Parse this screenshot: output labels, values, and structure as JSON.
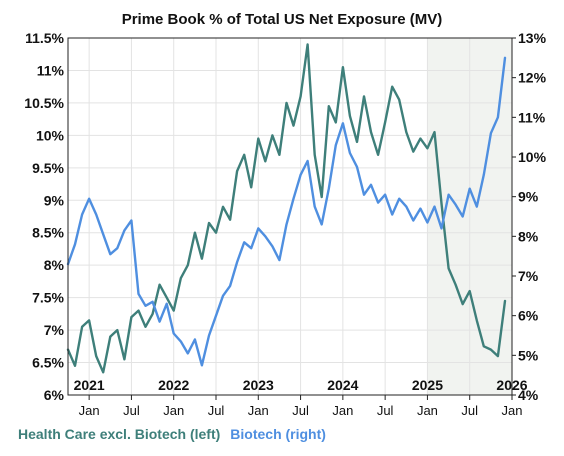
{
  "chart_data": {
    "type": "line",
    "title": "Prime Book % of Total US Net Exposure (MV)",
    "x_start": "2020-10",
    "x_end": "2026-01",
    "shaded_region": [
      "2025-01",
      "2026-01"
    ],
    "left_axis": {
      "min": 6,
      "max": 11.5,
      "ticks": [
        "6%",
        "6.5%",
        "7%",
        "7.5%",
        "8%",
        "8.5%",
        "9%",
        "9.5%",
        "10%",
        "10.5%",
        "11%",
        "11.5%"
      ],
      "tick_values": [
        6,
        6.5,
        7,
        7.5,
        8,
        8.5,
        9,
        9.5,
        10,
        10.5,
        11,
        11.5
      ]
    },
    "right_axis": {
      "min": 4,
      "max": 13,
      "ticks": [
        "4%",
        "5%",
        "6%",
        "7%",
        "8%",
        "9%",
        "10%",
        "11%",
        "12%",
        "13%"
      ],
      "tick_values": [
        4,
        5,
        6,
        7,
        8,
        9,
        10,
        11,
        12,
        13
      ]
    },
    "year_labels": [
      {
        "text": "2021",
        "date": "2021-01"
      },
      {
        "text": "2022",
        "date": "2022-01"
      },
      {
        "text": "2023",
        "date": "2023-01"
      },
      {
        "text": "2024",
        "date": "2024-01"
      },
      {
        "text": "2025",
        "date": "2025-01"
      },
      {
        "text": "2026",
        "date": "2026-01"
      }
    ],
    "month_labels": [
      {
        "text": "Jan",
        "date": "2021-01"
      },
      {
        "text": "Jul",
        "date": "2021-07"
      },
      {
        "text": "Jan",
        "date": "2022-01"
      },
      {
        "text": "Jul",
        "date": "2022-07"
      },
      {
        "text": "Jan",
        "date": "2023-01"
      },
      {
        "text": "Jul",
        "date": "2023-07"
      },
      {
        "text": "Jan",
        "date": "2024-01"
      },
      {
        "text": "Jul",
        "date": "2024-07"
      },
      {
        "text": "Jan",
        "date": "2025-01"
      },
      {
        "text": "Jul",
        "date": "2025-07"
      },
      {
        "text": "Jan",
        "date": "2026-01"
      }
    ],
    "series": [
      {
        "name": "Health Care excl. Biotech (left)",
        "axis": "left",
        "color": "#3e7f7a",
        "points": [
          [
            "2020-10",
            6.7
          ],
          [
            "2020-11",
            6.45
          ],
          [
            "2020-12",
            7.05
          ],
          [
            "2021-01",
            7.15
          ],
          [
            "2021-02",
            6.6
          ],
          [
            "2021-03",
            6.35
          ],
          [
            "2021-04",
            6.9
          ],
          [
            "2021-05",
            7.0
          ],
          [
            "2021-06",
            6.55
          ],
          [
            "2021-07",
            7.2
          ],
          [
            "2021-08",
            7.3
          ],
          [
            "2021-09",
            7.05
          ],
          [
            "2021-10",
            7.25
          ],
          [
            "2021-11",
            7.7
          ],
          [
            "2021-12",
            7.5
          ],
          [
            "2022-01",
            7.3
          ],
          [
            "2022-02",
            7.8
          ],
          [
            "2022-03",
            8.0
          ],
          [
            "2022-04",
            8.5
          ],
          [
            "2022-05",
            8.1
          ],
          [
            "2022-06",
            8.65
          ],
          [
            "2022-07",
            8.5
          ],
          [
            "2022-08",
            8.9
          ],
          [
            "2022-09",
            8.7
          ],
          [
            "2022-10",
            9.45
          ],
          [
            "2022-11",
            9.7
          ],
          [
            "2022-12",
            9.2
          ],
          [
            "2023-01",
            9.95
          ],
          [
            "2023-02",
            9.6
          ],
          [
            "2023-03",
            10.0
          ],
          [
            "2023-04",
            9.7
          ],
          [
            "2023-05",
            10.5
          ],
          [
            "2023-06",
            10.15
          ],
          [
            "2023-07",
            10.6
          ],
          [
            "2023-08",
            11.4
          ],
          [
            "2023-09",
            9.7
          ],
          [
            "2023-10",
            9.05
          ],
          [
            "2023-11",
            10.45
          ],
          [
            "2023-12",
            10.2
          ],
          [
            "2024-01",
            11.05
          ],
          [
            "2024-02",
            10.3
          ],
          [
            "2024-03",
            9.9
          ],
          [
            "2024-04",
            10.6
          ],
          [
            "2024-05",
            10.05
          ],
          [
            "2024-06",
            9.7
          ],
          [
            "2024-07",
            10.2
          ],
          [
            "2024-08",
            10.75
          ],
          [
            "2024-09",
            10.55
          ],
          [
            "2024-10",
            10.05
          ],
          [
            "2024-11",
            9.75
          ],
          [
            "2024-12",
            9.95
          ],
          [
            "2025-01",
            9.8
          ],
          [
            "2025-02",
            10.05
          ],
          [
            "2025-03",
            8.95
          ],
          [
            "2025-04",
            7.95
          ],
          [
            "2025-05",
            7.7
          ],
          [
            "2025-06",
            7.4
          ],
          [
            "2025-07",
            7.6
          ],
          [
            "2025-08",
            7.15
          ],
          [
            "2025-09",
            6.75
          ],
          [
            "2025-10",
            6.7
          ],
          [
            "2025-11",
            6.6
          ],
          [
            "2025-12",
            7.45
          ]
        ]
      },
      {
        "name": "Biotech (right)",
        "axis": "right",
        "color": "#4f8fe0",
        "points": [
          [
            "2020-10",
            7.3
          ],
          [
            "2020-11",
            7.8
          ],
          [
            "2020-12",
            8.55
          ],
          [
            "2021-01",
            8.95
          ],
          [
            "2021-02",
            8.55
          ],
          [
            "2021-03",
            8.05
          ],
          [
            "2021-04",
            7.55
          ],
          [
            "2021-05",
            7.7
          ],
          [
            "2021-06",
            8.15
          ],
          [
            "2021-07",
            8.4
          ],
          [
            "2021-08",
            6.55
          ],
          [
            "2021-09",
            6.25
          ],
          [
            "2021-10",
            6.35
          ],
          [
            "2021-11",
            5.85
          ],
          [
            "2021-12",
            6.3
          ],
          [
            "2022-01",
            5.55
          ],
          [
            "2022-02",
            5.35
          ],
          [
            "2022-03",
            5.05
          ],
          [
            "2022-04",
            5.4
          ],
          [
            "2022-05",
            4.75
          ],
          [
            "2022-06",
            5.5
          ],
          [
            "2022-07",
            6.0
          ],
          [
            "2022-08",
            6.5
          ],
          [
            "2022-09",
            6.75
          ],
          [
            "2022-10",
            7.35
          ],
          [
            "2022-11",
            7.85
          ],
          [
            "2022-12",
            7.7
          ],
          [
            "2023-01",
            8.2
          ],
          [
            "2023-02",
            8.0
          ],
          [
            "2023-03",
            7.75
          ],
          [
            "2023-04",
            7.4
          ],
          [
            "2023-05",
            8.3
          ],
          [
            "2023-06",
            8.95
          ],
          [
            "2023-07",
            9.55
          ],
          [
            "2023-08",
            9.9
          ],
          [
            "2023-09",
            8.75
          ],
          [
            "2023-10",
            8.3
          ],
          [
            "2023-11",
            9.2
          ],
          [
            "2023-12",
            10.3
          ],
          [
            "2024-01",
            10.85
          ],
          [
            "2024-02",
            10.1
          ],
          [
            "2024-03",
            9.75
          ],
          [
            "2024-04",
            9.05
          ],
          [
            "2024-05",
            9.3
          ],
          [
            "2024-06",
            8.85
          ],
          [
            "2024-07",
            9.05
          ],
          [
            "2024-08",
            8.55
          ],
          [
            "2024-09",
            8.95
          ],
          [
            "2024-10",
            8.75
          ],
          [
            "2024-11",
            8.4
          ],
          [
            "2024-12",
            8.7
          ],
          [
            "2025-01",
            8.35
          ],
          [
            "2025-02",
            8.75
          ],
          [
            "2025-03",
            8.2
          ],
          [
            "2025-04",
            9.05
          ],
          [
            "2025-05",
            8.8
          ],
          [
            "2025-06",
            8.5
          ],
          [
            "2025-07",
            9.2
          ],
          [
            "2025-08",
            8.75
          ],
          [
            "2025-09",
            9.55
          ],
          [
            "2025-10",
            10.6
          ],
          [
            "2025-11",
            11.0
          ],
          [
            "2025-12",
            12.5
          ]
        ]
      }
    ]
  }
}
